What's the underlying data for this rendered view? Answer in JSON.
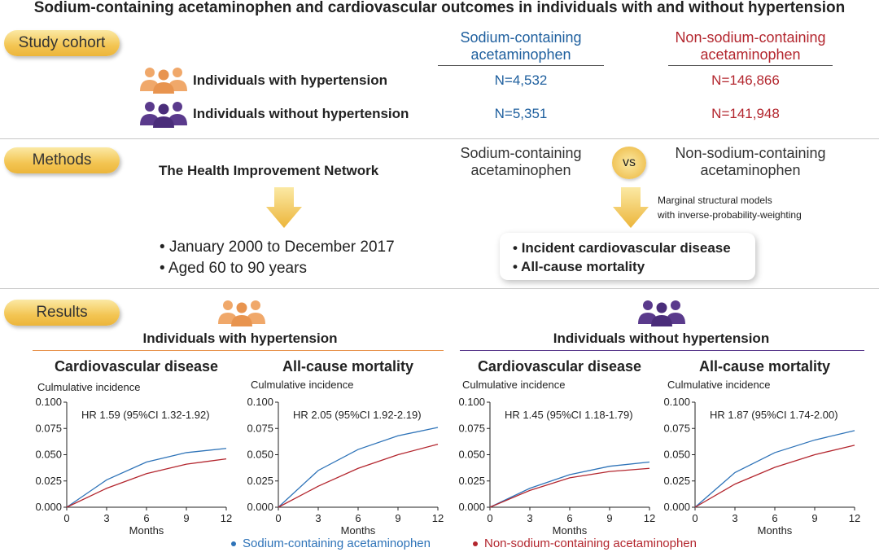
{
  "title": "Sodium-containing acetaminophen and cardiovascular outcomes in individuals with and without hypertension",
  "colors": {
    "sodium": "#2e73b8",
    "nonsodium": "#b3262e",
    "orange_people": "#f0a86a",
    "purple_people": "#5a3a8c",
    "pill": "#f3c553"
  },
  "cohort": {
    "label": "Study cohort",
    "col_sodium": "Sodium-containing\nacetaminophen",
    "col_nonsodium": "Non-sodium-containing\nacetaminophen",
    "rows": [
      {
        "label": "Individuals with hypertension",
        "icon": "people-orange-icon",
        "sodium_n": "N=4,532",
        "nonsodium_n": "N=146,866"
      },
      {
        "label": "Individuals without hypertension",
        "icon": "people-purple-icon",
        "sodium_n": "N=5,351",
        "nonsodium_n": "N=141,948"
      }
    ]
  },
  "methods": {
    "label": "Methods",
    "source": "The Health Improvement Network",
    "criteria": [
      "January 2000 to December 2017",
      "Aged 60 to 90 years"
    ],
    "compare_left": "Sodium-containing\nacetaminophen",
    "vs": "vs",
    "compare_right": "Non-sodium-containing\nacetaminophen",
    "model_note": "Marginal structural models\nwith inverse-probability-weighting",
    "outcomes": [
      "Incident cardiovascular disease",
      "All-cause mortality"
    ]
  },
  "results": {
    "label": "Results",
    "group_with": "Individuals with hypertension",
    "group_without": "Individuals without hypertension"
  },
  "legend": {
    "sodium": "Sodium-containing acetaminophen",
    "nonsodium": "Non-sodium-containing acetaminophen"
  },
  "chart_data": [
    {
      "type": "line",
      "title": "Cardiovascular disease",
      "ylabel": "Culmulative incidence",
      "xlabel": "Months",
      "annotation": "HR 1.59 (95%CI 1.32-1.92)",
      "x": [
        0,
        3,
        6,
        9,
        12
      ],
      "xlim": [
        0,
        12
      ],
      "ylim": [
        0,
        0.1
      ],
      "yticks": [
        "0.000",
        "0.025",
        "0.050",
        "0.075",
        "0.100"
      ],
      "xticks": [
        "0",
        "3",
        "6",
        "9",
        "12"
      ],
      "series": [
        {
          "name": "Sodium-containing acetaminophen",
          "values": [
            0,
            0.026,
            0.043,
            0.052,
            0.056
          ]
        },
        {
          "name": "Non-sodium-containing acetaminophen",
          "values": [
            0,
            0.018,
            0.032,
            0.041,
            0.046
          ]
        }
      ]
    },
    {
      "type": "line",
      "title": "All-cause mortality",
      "ylabel": "Culmulative incidence",
      "xlabel": "Months",
      "annotation": "HR 2.05 (95%CI 1.92-2.19)",
      "x": [
        0,
        3,
        6,
        9,
        12
      ],
      "xlim": [
        0,
        12
      ],
      "ylim": [
        0,
        0.1
      ],
      "yticks": [
        "0.000",
        "0.025",
        "0.050",
        "0.075",
        "0.100"
      ],
      "xticks": [
        "0",
        "3",
        "6",
        "9",
        "12"
      ],
      "series": [
        {
          "name": "Sodium-containing acetaminophen",
          "values": [
            0,
            0.035,
            0.055,
            0.068,
            0.076
          ]
        },
        {
          "name": "Non-sodium-containing acetaminophen",
          "values": [
            0,
            0.02,
            0.037,
            0.05,
            0.06
          ]
        }
      ]
    },
    {
      "type": "line",
      "title": "Cardiovascular disease",
      "ylabel": "Culmulative incidence",
      "xlabel": "Months",
      "annotation": "HR 1.45 (95%CI 1.18-1.79)",
      "x": [
        0,
        3,
        6,
        9,
        12
      ],
      "xlim": [
        0,
        12
      ],
      "ylim": [
        0,
        0.1
      ],
      "yticks": [
        "0.000",
        "0.025",
        "0.050",
        "0.075",
        "0.100"
      ],
      "xticks": [
        "0",
        "3",
        "6",
        "9",
        "12"
      ],
      "series": [
        {
          "name": "Sodium-containing acetaminophen",
          "values": [
            0,
            0.018,
            0.031,
            0.039,
            0.043
          ]
        },
        {
          "name": "Non-sodium-containing acetaminophen",
          "values": [
            0,
            0.016,
            0.028,
            0.034,
            0.037
          ]
        }
      ]
    },
    {
      "type": "line",
      "title": "All-cause mortality",
      "ylabel": "Culmulative incidence",
      "xlabel": "Months",
      "annotation": "HR 1.87 (95%CI 1.74-2.00)",
      "x": [
        0,
        3,
        6,
        9,
        12
      ],
      "xlim": [
        0,
        12
      ],
      "ylim": [
        0,
        0.1
      ],
      "yticks": [
        "0.000",
        "0.025",
        "0.050",
        "0.075",
        "0.100"
      ],
      "xticks": [
        "0",
        "3",
        "6",
        "9",
        "12"
      ],
      "series": [
        {
          "name": "Sodium-containing acetaminophen",
          "values": [
            0,
            0.033,
            0.052,
            0.064,
            0.073
          ]
        },
        {
          "name": "Non-sodium-containing acetaminophen",
          "values": [
            0,
            0.022,
            0.038,
            0.05,
            0.059
          ]
        }
      ]
    }
  ]
}
